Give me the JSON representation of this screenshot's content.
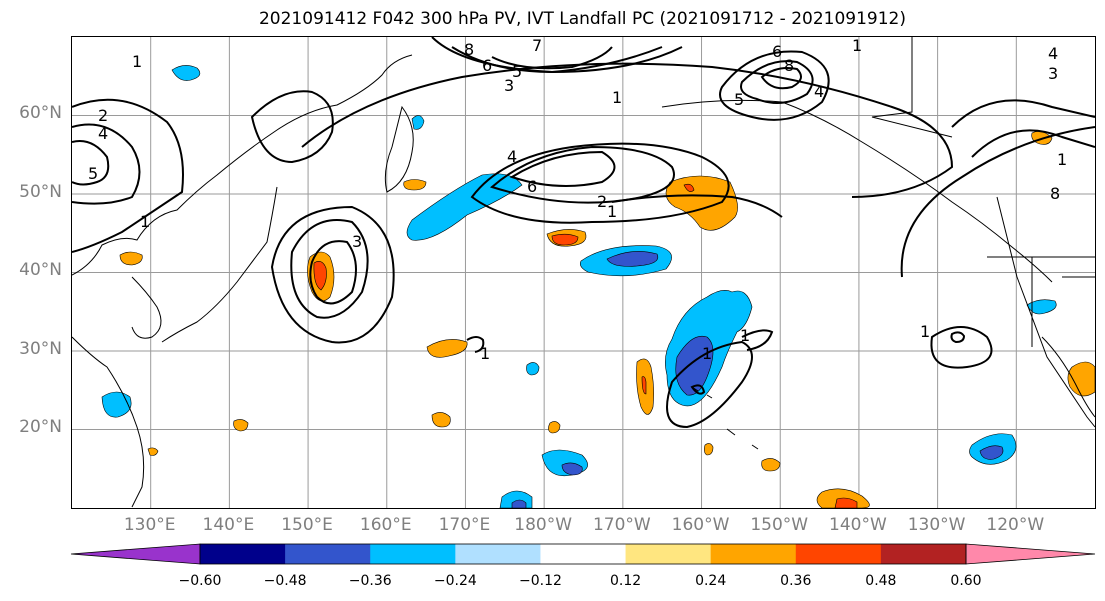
{
  "chart_data": {
    "type": "contour_map",
    "title": "2021091412 F042 300 hPa PV, IVT Landfall PC (2021091712 - 2021091912)",
    "map": {
      "lon_range": [
        120,
        250
      ],
      "lat_range": [
        10,
        70
      ],
      "lon_ticks": [
        "130°E",
        "140°E",
        "150°E",
        "160°E",
        "170°E",
        "180°W",
        "170°W",
        "160°W",
        "150°W",
        "140°W",
        "130°W",
        "120°W"
      ],
      "lat_ticks": [
        "60°N",
        "50°N",
        "40°N",
        "30°N",
        "20°N"
      ],
      "grid": true
    },
    "pv_contours": {
      "labels": [
        "1",
        "2",
        "3",
        "4",
        "5",
        "6",
        "7",
        "8"
      ]
    },
    "colorbar": {
      "ticks": [
        "−0.60",
        "−0.48",
        "−0.36",
        "−0.24",
        "−0.12",
        "0.12",
        "0.24",
        "0.36",
        "0.48",
        "0.60"
      ],
      "bounds": [
        -0.72,
        -0.6,
        -0.48,
        -0.36,
        -0.24,
        -0.12,
        0.12,
        0.24,
        0.36,
        0.48,
        0.6,
        0.72
      ],
      "colors": [
        "#9933cc",
        "#00008b",
        "#3355cc",
        "#00bfff",
        "#b0e0ff",
        "#ffffff",
        "#ffe680",
        "#ffa500",
        "#ff4500",
        "#b22222",
        "#ff88aa"
      ],
      "extend": "both"
    }
  }
}
